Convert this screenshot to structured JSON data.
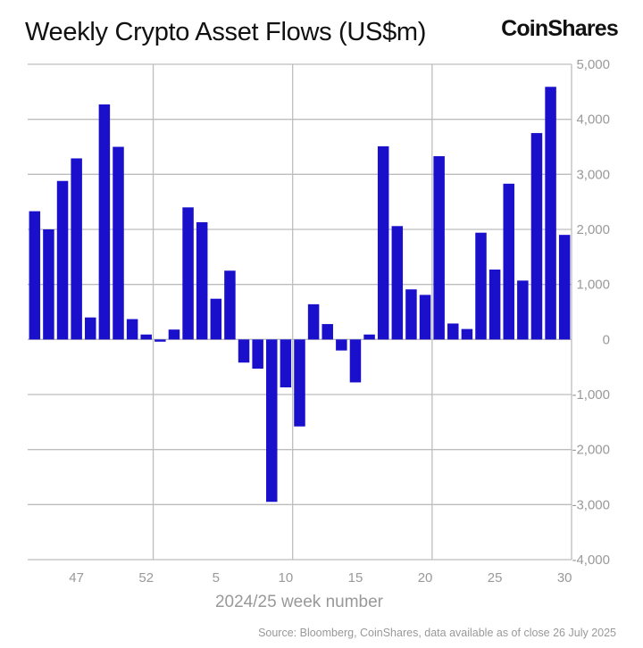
{
  "title": "Weekly Crypto Asset Flows (US$m)",
  "logo": "CoinShares",
  "source": "Source: Bloomberg, CoinShares, data available as of close 26 July 2025",
  "chart_data": {
    "type": "bar",
    "title": "Weekly Crypto Asset Flows (US$m)",
    "xlabel": "2024/25 week number",
    "ylabel": "",
    "ylim": [
      -4000,
      5000
    ],
    "yticks": [
      5000,
      4000,
      3000,
      2000,
      1000,
      0,
      -1000,
      -2000,
      -3000,
      -4000
    ],
    "ytick_labels": [
      "5,000",
      "4,000",
      "3,000",
      "2,000",
      "1,000",
      "0",
      "-1,000",
      "-2,000",
      "-3,000",
      "-4,000"
    ],
    "y_axis_position": "right",
    "grid": true,
    "bar_color": "#1a10cc",
    "categories": [
      44,
      45,
      46,
      47,
      48,
      49,
      50,
      51,
      52,
      1,
      2,
      3,
      4,
      5,
      6,
      7,
      8,
      9,
      10,
      11,
      12,
      13,
      14,
      15,
      16,
      17,
      18,
      19,
      20,
      21,
      22,
      23,
      24,
      25,
      26,
      27,
      28,
      29,
      30
    ],
    "xtick_labels": [
      "47",
      "52",
      "5",
      "10",
      "15",
      "20",
      "25",
      "30"
    ],
    "values": [
      2330,
      2000,
      2880,
      3290,
      400,
      4270,
      3500,
      370,
      90,
      -40,
      180,
      2400,
      2130,
      740,
      1250,
      -420,
      -530,
      -2950,
      -870,
      -1580,
      640,
      280,
      -200,
      -780,
      90,
      3510,
      2060,
      910,
      810,
      3330,
      290,
      190,
      1940,
      1270,
      2830,
      1070,
      3750,
      4590,
      1900
    ]
  }
}
